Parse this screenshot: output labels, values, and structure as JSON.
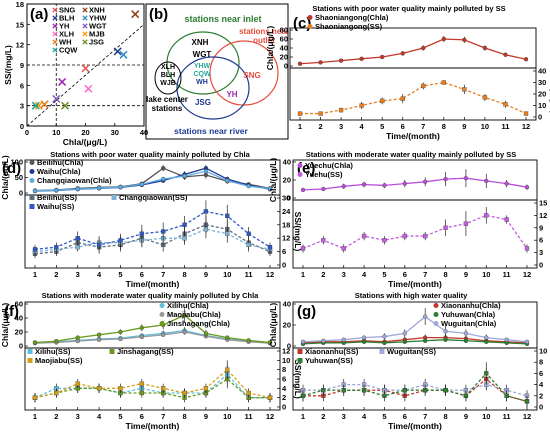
{
  "chart_data": [
    {
      "id": "a",
      "type": "scatter",
      "panel_label": "(a)",
      "xlabel": "Chla/(μg/L)",
      "ylabel": "SS/(mg/L)",
      "xlim": [
        0,
        40
      ],
      "ylim": [
        0,
        18
      ],
      "xticks": [
        "0",
        "10",
        "20",
        "30",
        "40"
      ],
      "yticks": [
        "0",
        "3",
        "6",
        "9",
        "12",
        "15",
        "18"
      ],
      "ref_lines": {
        "chla": 10,
        "ss": 3,
        "ss2": 9
      },
      "series": [
        {
          "name": "SNG",
          "color": "#e05050",
          "marker": "x",
          "point": [
            20,
            8.5
          ]
        },
        {
          "name": "XNH",
          "color": "#8b4513",
          "marker": "x",
          "point": [
            37,
            16.5
          ]
        },
        {
          "name": "BLH",
          "color": "#1f3a93",
          "marker": "x",
          "point": [
            31,
            11
          ]
        },
        {
          "name": "YHW",
          "color": "#2b8cbe",
          "marker": "x",
          "point": [
            33,
            10.5
          ]
        },
        {
          "name": "YH",
          "color": "#9c27b0",
          "marker": "x",
          "point": [
            12,
            6.5
          ]
        },
        {
          "name": "WGT",
          "color": "#7e57c2",
          "marker": "x",
          "point": [
            10,
            4
          ]
        },
        {
          "name": "XLH",
          "color": "#ff66cc",
          "marker": "x",
          "point": [
            21,
            5.5
          ]
        },
        {
          "name": "MJB",
          "color": "#ff9900",
          "marker": "x",
          "point": [
            4,
            3
          ]
        },
        {
          "name": "WH",
          "color": "#e67e22",
          "marker": "x",
          "point": [
            6,
            3.2
          ]
        },
        {
          "name": "JSG",
          "color": "#6a8e23",
          "marker": "x",
          "point": [
            13,
            3
          ]
        },
        {
          "name": "CQW",
          "color": "#26a69a",
          "marker": "x",
          "point": [
            3,
            3
          ]
        }
      ]
    },
    {
      "id": "b",
      "type": "diagram",
      "panel_label": "(b)",
      "group_labels": {
        "inlet": "stations near inlet",
        "outlet": "stations near outlet",
        "lake": "lake center stations",
        "river": "stations near river"
      },
      "stations": [
        "XNH",
        "WGT",
        "SNG",
        "YH",
        "YHW",
        "CQW",
        "WH",
        "JSG",
        "XLH",
        "BLH",
        "WJB"
      ]
    },
    {
      "id": "c",
      "type": "line",
      "panel_label": "(c)",
      "title": "Stations with poor water quality mainly polluted by SS",
      "x": [
        1,
        2,
        3,
        4,
        5,
        6,
        7,
        8,
        9,
        10,
        11,
        12
      ],
      "xlabel": "Time/(month)",
      "top": {
        "ylabel": "Chla/(μg/L)",
        "ylim": [
          0,
          80
        ],
        "yticks": [
          "0",
          "20",
          "40",
          "60",
          "80"
        ]
      },
      "bottom": {
        "ylabel": "SS/(mg/L)",
        "ylim": [
          0,
          40
        ],
        "yticks": [
          "0",
          "10",
          "20",
          "30",
          "40"
        ]
      },
      "series": [
        {
          "name": "Shaoniangong(Chla)",
          "color": "#c0392b",
          "part": "top",
          "dash": false,
          "values": [
            5,
            8,
            12,
            16,
            20,
            28,
            40,
            60,
            58,
            40,
            25,
            15
          ],
          "err": [
            2,
            2,
            3,
            3,
            4,
            5,
            6,
            7,
            7,
            6,
            5,
            3
          ]
        },
        {
          "name": "Shaoniangong(SS)",
          "color": "#e67e22",
          "part": "bottom",
          "dash": true,
          "values": [
            3,
            3,
            6,
            10,
            14,
            16,
            27,
            30,
            24,
            17,
            11,
            3
          ],
          "err": [
            1,
            1,
            2,
            3,
            3,
            4,
            3,
            2,
            4,
            3,
            3,
            1
          ]
        }
      ]
    },
    {
      "id": "d",
      "type": "line",
      "panel_label": "(d)",
      "title": "Stations with poor water quality mainly polluted by Chla",
      "x": [
        1,
        2,
        3,
        4,
        5,
        6,
        7,
        8,
        9,
        10,
        11,
        12
      ],
      "xlabel": "Time/(month)",
      "top": {
        "ylabel": "Chla/(μg/L)",
        "ylim": [
          0,
          100
        ],
        "yticks": [
          "0",
          "50",
          "100"
        ]
      },
      "bottom": {
        "ylabel": "SS/(mg/L)",
        "ylim": [
          0,
          30
        ],
        "yticks": [
          "0",
          "6",
          "12",
          "18",
          "24",
          "30"
        ]
      },
      "series": [
        {
          "name": "Beilihu(Chla)",
          "color": "#555555",
          "part": "top",
          "dash": false,
          "values": [
            8,
            10,
            15,
            18,
            20,
            30,
            80,
            52,
            58,
            38,
            28,
            15
          ],
          "err": [
            2,
            2,
            3,
            4,
            4,
            6,
            10,
            10,
            12,
            8,
            6,
            3
          ]
        },
        {
          "name": "Waihu(Chla)",
          "color": "#1f3a93",
          "part": "top",
          "dash": false,
          "values": [
            6,
            8,
            12,
            15,
            18,
            26,
            40,
            60,
            80,
            45,
            25,
            12
          ],
          "err": [
            2,
            2,
            3,
            3,
            4,
            5,
            8,
            10,
            10,
            8,
            5,
            3
          ]
        },
        {
          "name": "Changqiaowan(Chla)",
          "color": "#5dade2",
          "part": "top",
          "dash": false,
          "values": [
            7,
            9,
            13,
            16,
            19,
            28,
            45,
            55,
            70,
            40,
            22,
            14
          ],
          "err": [
            2,
            2,
            3,
            3,
            4,
            5,
            7,
            8,
            9,
            7,
            5,
            3
          ]
        },
        {
          "name": "Beilihu(SS)",
          "color": "#5d6d7e",
          "part": "bottom",
          "dash": true,
          "values": [
            5,
            6,
            10,
            8,
            9,
            12,
            9,
            14,
            18,
            16,
            10,
            6
          ],
          "err": [
            2,
            2,
            3,
            3,
            3,
            4,
            3,
            4,
            4,
            4,
            3,
            2
          ]
        },
        {
          "name": "Changqiaowan(SS)",
          "color": "#7fb3d5",
          "part": "bottom",
          "dash": true,
          "values": [
            6,
            7,
            8,
            10,
            10,
            11,
            12,
            12,
            16,
            14,
            9,
            7
          ],
          "err": [
            2,
            2,
            2,
            3,
            3,
            3,
            3,
            3,
            4,
            4,
            3,
            2
          ]
        },
        {
          "name": "Waihu(SS)",
          "color": "#2e59c7",
          "part": "bottom",
          "dash": true,
          "values": [
            7,
            8,
            12,
            9,
            11,
            14,
            15,
            18,
            24,
            22,
            14,
            8
          ],
          "err": [
            2,
            2,
            3,
            3,
            3,
            4,
            4,
            4,
            5,
            5,
            3,
            2
          ]
        }
      ]
    },
    {
      "id": "e",
      "type": "line",
      "panel_label": "(e)",
      "title": "Stations with moderate water quality mainly polluted by SS",
      "x": [
        1,
        2,
        3,
        4,
        5,
        6,
        7,
        8,
        9,
        10,
        11,
        12
      ],
      "xlabel": "Time/(month)",
      "top": {
        "ylabel": "Chla/(μg/L)",
        "ylim": [
          0,
          40
        ],
        "yticks": [
          "0",
          "20",
          "40"
        ]
      },
      "bottom": {
        "ylabel": "SS/(mg/L)",
        "ylim": [
          0,
          15
        ],
        "yticks": [
          "0",
          "3",
          "6",
          "9",
          "12",
          "15"
        ]
      },
      "series": [
        {
          "name": "Yuechu(Chla)",
          "color": "#b84fd6",
          "part": "top",
          "dash": false,
          "values": [
            9,
            10,
            13,
            15,
            14,
            16,
            18,
            21,
            22,
            19,
            16,
            12
          ],
          "err": [
            2,
            2,
            3,
            3,
            3,
            4,
            5,
            8,
            10,
            8,
            4,
            3
          ]
        },
        {
          "name": "Yuehu(SS)",
          "color": "#c45ee0",
          "part": "bottom",
          "dash": true,
          "values": [
            4,
            6,
            4,
            7,
            6,
            7,
            7,
            9,
            10,
            12,
            11,
            4
          ],
          "err": [
            1,
            1,
            1,
            1,
            1,
            1,
            1,
            2,
            3,
            2,
            1,
            1
          ]
        }
      ]
    },
    {
      "id": "f",
      "type": "line",
      "panel_label": "(f)",
      "title": "Stations with moderate water quality mainly polluted by Chla",
      "x": [
        1,
        2,
        3,
        4,
        5,
        6,
        7,
        8,
        9,
        10,
        11,
        12
      ],
      "xlabel": "Time/(month)",
      "top": {
        "ylabel": "Chla/(μg/L)",
        "ylim": [
          0,
          60
        ],
        "yticks": [
          "0",
          "20",
          "40",
          "60"
        ]
      },
      "bottom": {
        "ylabel": "SS/(mg/L)",
        "ylim": [
          0,
          12
        ],
        "yticks": [
          "0",
          "2",
          "4",
          "6",
          "8",
          "10",
          "12"
        ]
      },
      "series": [
        {
          "name": "Xilihu(Chla)",
          "color": "#5bc0de",
          "part": "top",
          "dash": false,
          "values": [
            5,
            6,
            8,
            10,
            11,
            15,
            18,
            22,
            15,
            10,
            7,
            5
          ],
          "err": [
            1,
            1,
            2,
            2,
            2,
            3,
            4,
            5,
            4,
            3,
            2,
            1
          ]
        },
        {
          "name": "Maojiabu(Chla)",
          "color": "#999999",
          "part": "top",
          "dash": false,
          "values": [
            4,
            5,
            7,
            9,
            10,
            13,
            16,
            20,
            14,
            9,
            6,
            4
          ],
          "err": [
            1,
            1,
            2,
            2,
            2,
            3,
            3,
            4,
            3,
            2,
            2,
            1
          ]
        },
        {
          "name": "Jinshagang(Chla)",
          "color": "#6a9a1f",
          "part": "top",
          "dash": false,
          "values": [
            5,
            7,
            12,
            16,
            20,
            26,
            30,
            44,
            18,
            12,
            8,
            5
          ],
          "err": [
            1,
            2,
            3,
            3,
            4,
            5,
            6,
            10,
            5,
            3,
            2,
            1
          ]
        },
        {
          "name": "Xilihu(SS)",
          "color": "#5bc0de",
          "part": "bottom",
          "dash": true,
          "values": [
            2,
            4,
            4,
            4,
            3,
            4,
            3,
            3,
            3,
            7,
            2,
            2
          ],
          "err": [
            1,
            1,
            1,
            1,
            1,
            1,
            1,
            1,
            1,
            2,
            1,
            1
          ]
        },
        {
          "name": "Jinshagang(SS)",
          "color": "#6a9a1f",
          "part": "bottom",
          "dash": true,
          "values": [
            2,
            3,
            4,
            4,
            3,
            3,
            3,
            2,
            3,
            6,
            2,
            2
          ],
          "err": [
            1,
            1,
            1,
            1,
            1,
            1,
            1,
            1,
            1,
            2,
            1,
            1
          ]
        },
        {
          "name": "Maojiabu(SS)",
          "color": "#d4a017",
          "part": "bottom",
          "dash": true,
          "values": [
            2,
            3,
            5,
            4,
            4,
            5,
            4,
            3,
            4,
            8,
            3,
            2
          ],
          "err": [
            1,
            1,
            1,
            1,
            1,
            1,
            1,
            1,
            1,
            2,
            1,
            1
          ]
        }
      ]
    },
    {
      "id": "g",
      "type": "line",
      "panel_label": "(g)",
      "title": "Stations with high water quality",
      "x": [
        1,
        2,
        3,
        4,
        5,
        6,
        7,
        8,
        9,
        10,
        11,
        12
      ],
      "xlabel": "Time/(month)",
      "top": {
        "ylabel": "Chla/(μg/L)",
        "ylim": [
          0,
          40
        ],
        "yticks": [
          "0",
          "20",
          "40"
        ]
      },
      "bottom": {
        "ylabel": "SS/(mg/L)",
        "ylim": [
          0,
          10
        ],
        "yticks": [
          "0",
          "2",
          "4",
          "6",
          "8",
          "10"
        ]
      },
      "series": [
        {
          "name": "Xiaonanhu(Chla)",
          "color": "#c0392b",
          "part": "top",
          "dash": false,
          "values": [
            3,
            4,
            4,
            5,
            4,
            6,
            8,
            8,
            7,
            5,
            4,
            3
          ],
          "err": [
            1,
            1,
            1,
            1,
            1,
            2,
            3,
            3,
            2,
            2,
            1,
            1
          ]
        },
        {
          "name": "Yuhuwan(Chla)",
          "color": "#2e7d32",
          "part": "top",
          "dash": false,
          "values": [
            2,
            3,
            3,
            4,
            3,
            4,
            5,
            6,
            5,
            4,
            3,
            2
          ],
          "err": [
            1,
            1,
            1,
            1,
            1,
            1,
            2,
            2,
            2,
            1,
            1,
            1
          ]
        },
        {
          "name": "Wuguitan(Chla)",
          "color": "#9fa8da",
          "part": "top",
          "dash": false,
          "values": [
            4,
            5,
            6,
            8,
            9,
            12,
            28,
            14,
            12,
            8,
            6,
            4
          ],
          "err": [
            1,
            1,
            2,
            2,
            3,
            4,
            8,
            5,
            4,
            3,
            2,
            1
          ]
        },
        {
          "name": "Xiaonanhu(SS)",
          "color": "#c0392b",
          "part": "bottom",
          "dash": true,
          "values": [
            2,
            2,
            3,
            3,
            3,
            2,
            3,
            3,
            2,
            5,
            2,
            1
          ],
          "err": [
            1,
            1,
            1,
            1,
            1,
            1,
            1,
            1,
            1,
            2,
            1,
            1
          ]
        },
        {
          "name": "Wuguitan(SS)",
          "color": "#9fa8da",
          "part": "bottom",
          "dash": true,
          "values": [
            3,
            3,
            4,
            4,
            3,
            3,
            4,
            3,
            3,
            4,
            3,
            2
          ],
          "err": [
            1,
            1,
            1,
            1,
            1,
            1,
            1,
            1,
            1,
            1,
            1,
            1
          ]
        },
        {
          "name": "Yuhuwan(SS)",
          "color": "#2e7d32",
          "part": "bottom",
          "dash": true,
          "values": [
            2,
            3,
            3,
            3,
            2,
            3,
            3,
            3,
            2,
            6,
            2,
            1
          ],
          "err": [
            1,
            1,
            1,
            1,
            1,
            1,
            1,
            1,
            1,
            2,
            1,
            1
          ]
        }
      ]
    }
  ]
}
